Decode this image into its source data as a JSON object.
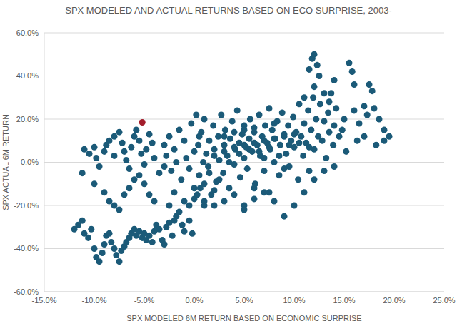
{
  "chart_data": {
    "type": "scatter",
    "title": "SPX MODELED AND ACTUAL RETURNS BASED ON ECO SURPRISE, 2003-",
    "x_label": "SPX MODELED 6M RETURN BASED ON ECONOMIC SURPRISE",
    "y_label": "SPX ACTUAL 6M RETURN",
    "xlim": [
      -15,
      25
    ],
    "xticks": [
      {
        "value": -15,
        "label": "-15.0%"
      },
      {
        "value": -10,
        "label": "-10.0%"
      },
      {
        "value": -5,
        "label": "-5.0%"
      },
      {
        "value": 0,
        "label": "0.0%"
      },
      {
        "value": 5,
        "label": "5.0%"
      },
      {
        "value": 10,
        "label": "10.0%"
      },
      {
        "value": 15,
        "label": "15.0%"
      },
      {
        "value": 20,
        "label": "20.0%"
      },
      {
        "value": 25,
        "label": "25.0%"
      }
    ],
    "ylim": [
      -60,
      60
    ],
    "yticks": [
      {
        "value": -60,
        "label": "-60.0%"
      },
      {
        "value": -40,
        "label": "-40.0%"
      },
      {
        "value": -20,
        "label": "-20.0%"
      },
      {
        "value": 0,
        "label": "0.0%"
      },
      {
        "value": 20,
        "label": "20.0%"
      },
      {
        "value": 40,
        "label": "40.0%"
      },
      {
        "value": 60,
        "label": "60.0%"
      }
    ],
    "grid": true,
    "series": [
      {
        "color": "#1b5a78",
        "marker": "circle",
        "x": [
          -12,
          -11.6,
          -11.2,
          -11,
          -10.6,
          -10.3,
          -10,
          -9.8,
          -9.5,
          -9.2,
          -9,
          -8.8,
          -8.5,
          -8.3,
          -8,
          -7.8,
          -7.5,
          -7.3,
          -7,
          -6.8,
          -6.5,
          -6.3,
          -6,
          -5.8,
          -5.5,
          -5.2,
          -5,
          -4.8,
          -4.5,
          -4.2,
          -4,
          -3.8,
          -3.5,
          -3.2,
          -3,
          -2.8,
          -2.5,
          -2.2,
          -2,
          -1.8,
          -1.5,
          -1.2,
          -1,
          -0.5,
          -0.2,
          -0.5,
          0,
          0.3,
          0.6,
          1,
          -11,
          -10.5,
          -10,
          -9.8,
          -9.5,
          -9,
          -8.8,
          -8.5,
          -8,
          -8,
          -7.5,
          -7.2,
          -7,
          -6.8,
          -6.5,
          -6.3,
          -6,
          -5.8,
          -5.5,
          -5.3,
          -5,
          -4.8,
          -4.5,
          -4.2,
          -4,
          -11.2,
          -10,
          -9,
          -8.5,
          -8,
          -7.5,
          -7,
          -6.5,
          -6,
          -5.5,
          -5,
          -4.5,
          -4,
          -3.5,
          -3,
          -3,
          -2.8,
          -2.5,
          -2.3,
          -2,
          -1.8,
          -1.5,
          -1.3,
          -1,
          -0.8,
          -0.5,
          -0.3,
          0,
          0,
          0.2,
          0.4,
          0.5,
          0.7,
          0.9,
          1,
          1.2,
          1.4,
          1.5,
          1.7,
          1.9,
          2,
          2.2,
          2.4,
          2.5,
          2.7,
          2.9,
          3,
          3.1,
          3.3,
          3.5,
          3.6,
          3.8,
          4,
          4.1,
          4.3,
          4.5,
          4.6,
          4.8,
          5,
          5,
          5.2,
          5.3,
          5.5,
          5.6,
          5.8,
          6,
          6.1,
          6.3,
          6.5,
          6.6,
          6.8,
          7,
          7.1,
          7.3,
          7.5,
          7.6,
          7.8,
          8,
          8.1,
          8.3,
          8.5,
          8.6,
          8.8,
          9,
          9.2,
          9.4,
          9.5,
          9.7,
          9.9,
          10,
          10.2,
          10.4,
          10.5,
          10.7,
          10.9,
          11,
          11.2,
          11.4,
          11.5,
          11.7,
          11.9,
          12,
          12.2,
          12.4,
          12.6,
          12.8,
          13,
          13.2,
          13.4,
          13.5,
          13.7,
          13.9,
          14,
          14.2,
          14.5,
          11.5,
          11.8,
          12,
          12.3,
          12.5,
          12,
          11,
          13,
          13.5,
          14,
          15.5,
          15.8,
          16,
          17.5,
          17.8,
          18,
          18.5,
          19,
          19.5,
          19,
          18.2,
          17,
          16.5,
          16,
          17,
          15,
          15.2,
          14.8,
          16.3,
          17.3,
          8,
          9,
          10,
          11,
          12,
          13,
          14,
          7,
          6,
          5,
          2,
          3,
          4,
          5,
          6,
          7,
          8,
          9,
          10,
          3.5,
          4.5,
          5.5,
          6.5,
          7.5,
          8.5,
          1.5,
          2.5,
          9.5,
          10.5,
          11.5,
          3,
          4,
          5,
          6,
          7,
          8,
          9,
          0.5,
          1,
          2,
          4,
          3,
          6,
          5,
          7.5,
          2,
          1,
          -1,
          -2,
          -2.5
        ],
        "values": [
          -31,
          -29,
          -27,
          -33,
          -35,
          -31,
          -40,
          -44,
          -46,
          -42,
          -38,
          -34,
          -33,
          -37,
          -40,
          -43,
          -46,
          -41,
          -39,
          -37,
          -35,
          -33,
          -31,
          -34,
          -32,
          -35,
          -33,
          -36,
          -34,
          -37,
          -32,
          -29,
          -31,
          -36,
          -38,
          -30,
          -28,
          -34,
          -27,
          -25,
          -23,
          -29,
          -32,
          -27,
          -33,
          -20,
          -17,
          -15,
          -12,
          -10,
          6,
          4,
          7,
          2,
          -2,
          5,
          8,
          10,
          12,
          3,
          14,
          9,
          5,
          1,
          -3,
          7,
          12,
          15,
          10,
          4,
          -1,
          6,
          13,
          9,
          2,
          -5,
          -10,
          -14,
          -18,
          -20,
          -22,
          -15,
          -12,
          -8,
          -6,
          -10,
          -15,
          -18,
          -5,
          -2,
          8,
          3,
          12,
          -4,
          6,
          0,
          15,
          -8,
          10,
          2,
          -3,
          18,
          5,
          -12,
          22,
          8,
          -6,
          14,
          0,
          20,
          4,
          -2,
          10,
          -15,
          17,
          6,
          -9,
          12,
          1,
          22,
          -5,
          8,
          15,
          3,
          -12,
          11,
          19,
          -1,
          6,
          24,
          9,
          -7,
          13,
          2,
          17,
          7,
          -3,
          11,
          20,
          5,
          14,
          -10,
          8,
          22,
          3,
          12,
          -4,
          17,
          9,
          25,
          6,
          15,
          0,
          11,
          19,
          -6,
          8,
          23,
          13,
          4,
          17,
          -2,
          10,
          21,
          7,
          14,
          -8,
          27,
          12,
          3,
          18,
          9,
          24,
          -4,
          15,
          30,
          6,
          20,
          12,
          27,
          10,
          19,
          2,
          23,
          14,
          32,
          8,
          17,
          25,
          12,
          43,
          48,
          50,
          45,
          40,
          35,
          30,
          32,
          28,
          38,
          46,
          42,
          36,
          36,
          33,
          25,
          20,
          15,
          12,
          10,
          8,
          12,
          18,
          24,
          26,
          20,
          5,
          15,
          10,
          22,
          -18,
          -25,
          -20,
          -14,
          -8,
          -4,
          -2,
          -14,
          -17,
          -20,
          3,
          5,
          7,
          8,
          9,
          10,
          11,
          12,
          13,
          0,
          4,
          6,
          5,
          7,
          3,
          -5,
          -8,
          8,
          9,
          7,
          12,
          14,
          15,
          16,
          2,
          18,
          -3,
          12,
          -18,
          -20,
          -15,
          -18,
          -12,
          -22,
          -14,
          -13,
          -20,
          -18,
          -14,
          -20
        ]
      },
      {
        "color": "#a31d2b",
        "marker": "circle",
        "x": [
          -5.2
        ],
        "values": [
          18.5
        ]
      }
    ]
  }
}
